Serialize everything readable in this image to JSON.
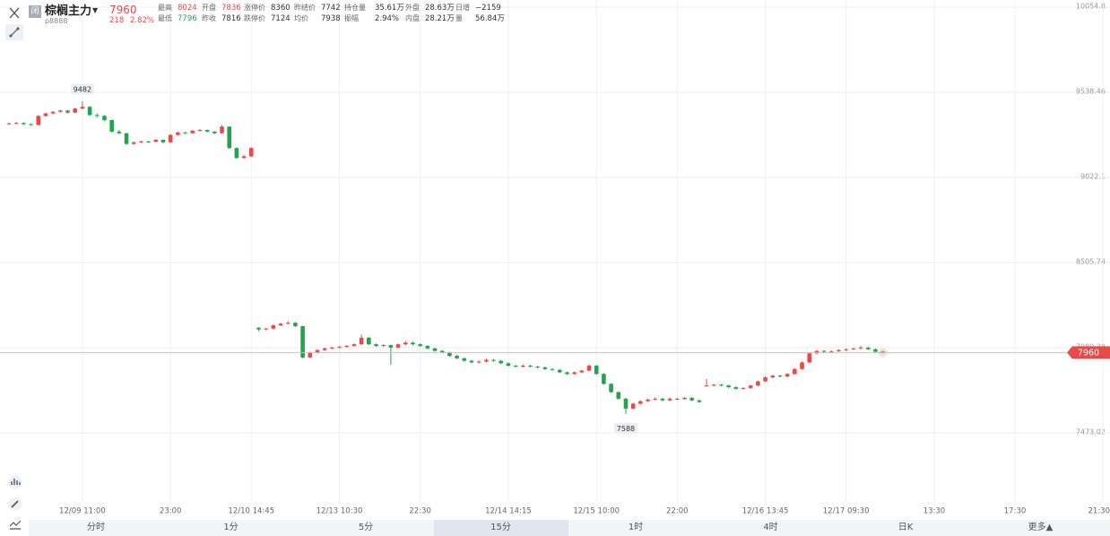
{
  "header": {
    "status_icon": "闭",
    "name": "棕榈主力",
    "code": "p8888",
    "price": "7960",
    "change": "218",
    "change_pct": "2.82%"
  },
  "quote_rows": [
    [
      {
        "label": "最高",
        "value": "8024",
        "color": "#e84a4a"
      },
      {
        "label": "开盘",
        "value": "7836",
        "color": "#e84a4a"
      },
      {
        "label": "涨停价",
        "value": "8360",
        "color": "#333333"
      },
      {
        "label": "昨结价",
        "value": "7742",
        "color": "#333333"
      },
      {
        "label": "持仓量",
        "value": "35.61万",
        "color": "#333333"
      },
      {
        "label": "外盘",
        "value": "28.63万",
        "color": "#333333"
      },
      {
        "label": "日增",
        "value": "−2159",
        "color": "#333333"
      }
    ],
    [
      {
        "label": "最低",
        "value": "7796",
        "color": "#1fa64a"
      },
      {
        "label": "昨收",
        "value": "7816",
        "color": "#333333"
      },
      {
        "label": "跌停价",
        "value": "7124",
        "color": "#333333"
      },
      {
        "label": "均价",
        "value": "7938",
        "color": "#333333"
      },
      {
        "label": "振幅",
        "value": "2.94%",
        "color": "#333333"
      },
      {
        "label": "内盘",
        "value": "28.21万",
        "color": "#333333"
      },
      {
        "label": "量",
        "value": "56.84万",
        "color": "#333333"
      }
    ]
  ],
  "tabs": {
    "items": [
      "分时",
      "1分",
      "5分",
      "15分",
      "1时",
      "4时",
      "日K",
      "更多▲"
    ],
    "selected": 3
  },
  "chart_data": {
    "type": "candlestick",
    "categories": [
      null,
      null,
      null,
      null,
      null,
      null,
      null,
      null,
      null,
      null,
      "12/09 11:00",
      null,
      null,
      null,
      null,
      null,
      null,
      null,
      null,
      null,
      null,
      null,
      "23:00",
      null,
      null,
      null,
      null,
      null,
      null,
      null,
      null,
      null,
      null,
      "12/10 14:45",
      null,
      null,
      null,
      null,
      null,
      null,
      null,
      null,
      null,
      null,
      null,
      "12/13 10:30",
      null,
      null,
      null,
      null,
      null,
      null,
      null,
      null,
      null,
      null,
      "22:30",
      null,
      null,
      null,
      null,
      null,
      null,
      null,
      null,
      null,
      null,
      null,
      "12/14 14:15",
      null,
      null,
      null,
      null,
      null,
      null,
      null,
      null,
      null,
      null,
      null,
      "12/15 10:00",
      null,
      null,
      null,
      null,
      null,
      null,
      null,
      null,
      null,
      null,
      "22:00",
      null,
      null,
      null,
      null,
      null,
      null,
      null,
      null,
      null,
      null,
      null,
      "12/16 13:45",
      null,
      null,
      null,
      null,
      null,
      null,
      null,
      null,
      null,
      null,
      "12/17 09:30",
      null,
      null,
      null,
      null,
      null,
      null,
      null,
      null,
      null,
      null,
      null,
      "13:30",
      null,
      null,
      null,
      null,
      null,
      null,
      null,
      null,
      null,
      null,
      "17:30",
      null,
      null,
      null,
      null,
      null,
      null,
      null,
      null,
      null,
      null,
      null,
      "21:30"
    ],
    "ohlc": [
      [
        9345,
        9355,
        9340,
        9350
      ],
      [
        9350,
        9358,
        9345,
        9352
      ],
      [
        9352,
        9356,
        9340,
        9345
      ],
      [
        9345,
        9350,
        9335,
        9340
      ],
      [
        9340,
        9400,
        9338,
        9395
      ],
      [
        9395,
        9415,
        9390,
        9410
      ],
      [
        9410,
        9425,
        9405,
        9420
      ],
      [
        9420,
        9432,
        9415,
        9428
      ],
      [
        9428,
        9430,
        9410,
        9415
      ],
      [
        9415,
        9445,
        9412,
        9440
      ],
      [
        9440,
        9482,
        9435,
        9450
      ],
      [
        9450,
        9455,
        9395,
        9400
      ],
      [
        9400,
        9410,
        9385,
        9395
      ],
      [
        9395,
        9400,
        9365,
        9370
      ],
      [
        9370,
        9372,
        9295,
        9300
      ],
      [
        9300,
        9310,
        9285,
        9290
      ],
      [
        9290,
        9292,
        9220,
        9225
      ],
      [
        9225,
        9240,
        9220,
        9235
      ],
      [
        9235,
        9245,
        9230,
        9240
      ],
      [
        9240,
        9245,
        9232,
        9238
      ],
      [
        9238,
        9256,
        9235,
        9250
      ],
      [
        9250,
        9252,
        9230,
        9235
      ],
      [
        9235,
        9285,
        9232,
        9280
      ],
      [
        9280,
        9300,
        9275,
        9295
      ],
      [
        9295,
        9298,
        9285,
        9290
      ],
      [
        9290,
        9310,
        9288,
        9305
      ],
      [
        9305,
        9315,
        9300,
        9310
      ],
      [
        9310,
        9312,
        9295,
        9300
      ],
      [
        9300,
        9302,
        9285,
        9290
      ],
      [
        9290,
        9340,
        9288,
        9330
      ],
      [
        9330,
        9332,
        9195,
        9200
      ],
      [
        9200,
        9205,
        9135,
        9140
      ],
      [
        9140,
        9158,
        9135,
        9150
      ],
      [
        9150,
        9205,
        9145,
        9200
      ],
      [
        8110,
        8115,
        8090,
        8100
      ],
      [
        8100,
        8110,
        8095,
        8105
      ],
      [
        8105,
        8130,
        8100,
        8125
      ],
      [
        8125,
        8140,
        8120,
        8135
      ],
      [
        8135,
        8150,
        8130,
        8140
      ],
      [
        8140,
        8145,
        8115,
        8120
      ],
      [
        8120,
        8122,
        7925,
        7930
      ],
      [
        7930,
        7965,
        7928,
        7960
      ],
      [
        7960,
        7980,
        7955,
        7975
      ],
      [
        7975,
        7990,
        7970,
        7985
      ],
      [
        7985,
        7995,
        7980,
        7990
      ],
      [
        7990,
        8000,
        7985,
        7995
      ],
      [
        7995,
        8005,
        7990,
        8000
      ],
      [
        8000,
        8015,
        7995,
        8010
      ],
      [
        8010,
        8070,
        8005,
        8050
      ],
      [
        8050,
        8055,
        8005,
        8010
      ],
      [
        8010,
        8015,
        7995,
        8000
      ],
      [
        8000,
        8010,
        7995,
        8005
      ],
      [
        8005,
        8008,
        7885,
        7990
      ],
      [
        7990,
        8015,
        7985,
        8010
      ],
      [
        8010,
        8030,
        8005,
        8020
      ],
      [
        8020,
        8025,
        8005,
        8010
      ],
      [
        8010,
        8015,
        7995,
        8000
      ],
      [
        8000,
        8005,
        7980,
        7985
      ],
      [
        7985,
        7990,
        7965,
        7970
      ],
      [
        7970,
        7975,
        7955,
        7960
      ],
      [
        7960,
        7965,
        7935,
        7940
      ],
      [
        7940,
        7945,
        7920,
        7925
      ],
      [
        7925,
        7930,
        7905,
        7910
      ],
      [
        7910,
        7915,
        7895,
        7900
      ],
      [
        7900,
        7912,
        7895,
        7905
      ],
      [
        7905,
        7925,
        7900,
        7915
      ],
      [
        7915,
        7920,
        7905,
        7910
      ],
      [
        7910,
        7915,
        7890,
        7895
      ],
      [
        7895,
        7900,
        7875,
        7880
      ],
      [
        7880,
        7885,
        7870,
        7875
      ],
      [
        7875,
        7888,
        7870,
        7880
      ],
      [
        7880,
        7885,
        7870,
        7875
      ],
      [
        7875,
        7880,
        7865,
        7870
      ],
      [
        7870,
        7875,
        7855,
        7860
      ],
      [
        7860,
        7865,
        7850,
        7855
      ],
      [
        7855,
        7860,
        7835,
        7840
      ],
      [
        7840,
        7845,
        7825,
        7830
      ],
      [
        7830,
        7845,
        7825,
        7840
      ],
      [
        7840,
        7855,
        7835,
        7850
      ],
      [
        7850,
        7890,
        7845,
        7880
      ],
      [
        7880,
        7885,
        7825,
        7830
      ],
      [
        7830,
        7835,
        7765,
        7770
      ],
      [
        7770,
        7775,
        7715,
        7720
      ],
      [
        7720,
        7725,
        7675,
        7680
      ],
      [
        7680,
        7685,
        7588,
        7620
      ],
      [
        7620,
        7655,
        7615,
        7650
      ],
      [
        7650,
        7670,
        7645,
        7665
      ],
      [
        7665,
        7680,
        7660,
        7675
      ],
      [
        7675,
        7688,
        7670,
        7680
      ],
      [
        7680,
        7685,
        7665,
        7670
      ],
      [
        7670,
        7688,
        7665,
        7680
      ],
      [
        7680,
        7685,
        7672,
        7678
      ],
      [
        7678,
        7692,
        7675,
        7685
      ],
      [
        7685,
        7690,
        7665,
        7670
      ],
      [
        7670,
        7675,
        7655,
        7660
      ],
      [
        7760,
        7800,
        7755,
        7760
      ],
      [
        7760,
        7770,
        7755,
        7765
      ],
      [
        7765,
        7770,
        7755,
        7760
      ],
      [
        7760,
        7765,
        7745,
        7750
      ],
      [
        7750,
        7755,
        7735,
        7740
      ],
      [
        7740,
        7750,
        7735,
        7745
      ],
      [
        7745,
        7765,
        7740,
        7760
      ],
      [
        7760,
        7790,
        7755,
        7785
      ],
      [
        7785,
        7815,
        7780,
        7810
      ],
      [
        7810,
        7825,
        7805,
        7820
      ],
      [
        7820,
        7825,
        7810,
        7815
      ],
      [
        7815,
        7835,
        7810,
        7830
      ],
      [
        7830,
        7865,
        7825,
        7860
      ],
      [
        7860,
        7905,
        7855,
        7900
      ],
      [
        7900,
        7960,
        7895,
        7955
      ],
      [
        7955,
        7975,
        7950,
        7970
      ],
      [
        7970,
        7975,
        7960,
        7965
      ],
      [
        7965,
        7972,
        7960,
        7968
      ],
      [
        7968,
        7980,
        7965,
        7975
      ],
      [
        7975,
        7985,
        7970,
        7980
      ],
      [
        7980,
        7990,
        7975,
        7985
      ],
      [
        7985,
        8000,
        7980,
        7990
      ],
      [
        7990,
        7995,
        7975,
        7980
      ],
      [
        7980,
        7985,
        7960,
        7965
      ],
      [
        7965,
        7970,
        7955,
        7960
      ],
      null,
      null,
      null,
      null,
      null,
      null,
      null,
      null,
      null,
      null,
      null,
      null,
      null,
      null,
      null,
      null,
      null,
      null,
      null,
      null,
      null,
      null,
      null,
      null,
      null,
      null,
      null,
      null,
      null,
      null
    ],
    "ylim": [
      7054,
      10098
    ],
    "yticks": [
      7473.02,
      7989.38,
      8505.74,
      9022.1,
      9538.46,
      10054.8
    ],
    "up_color": "#e84a4a",
    "down_color": "#1fa64a",
    "grid": true
  }
}
